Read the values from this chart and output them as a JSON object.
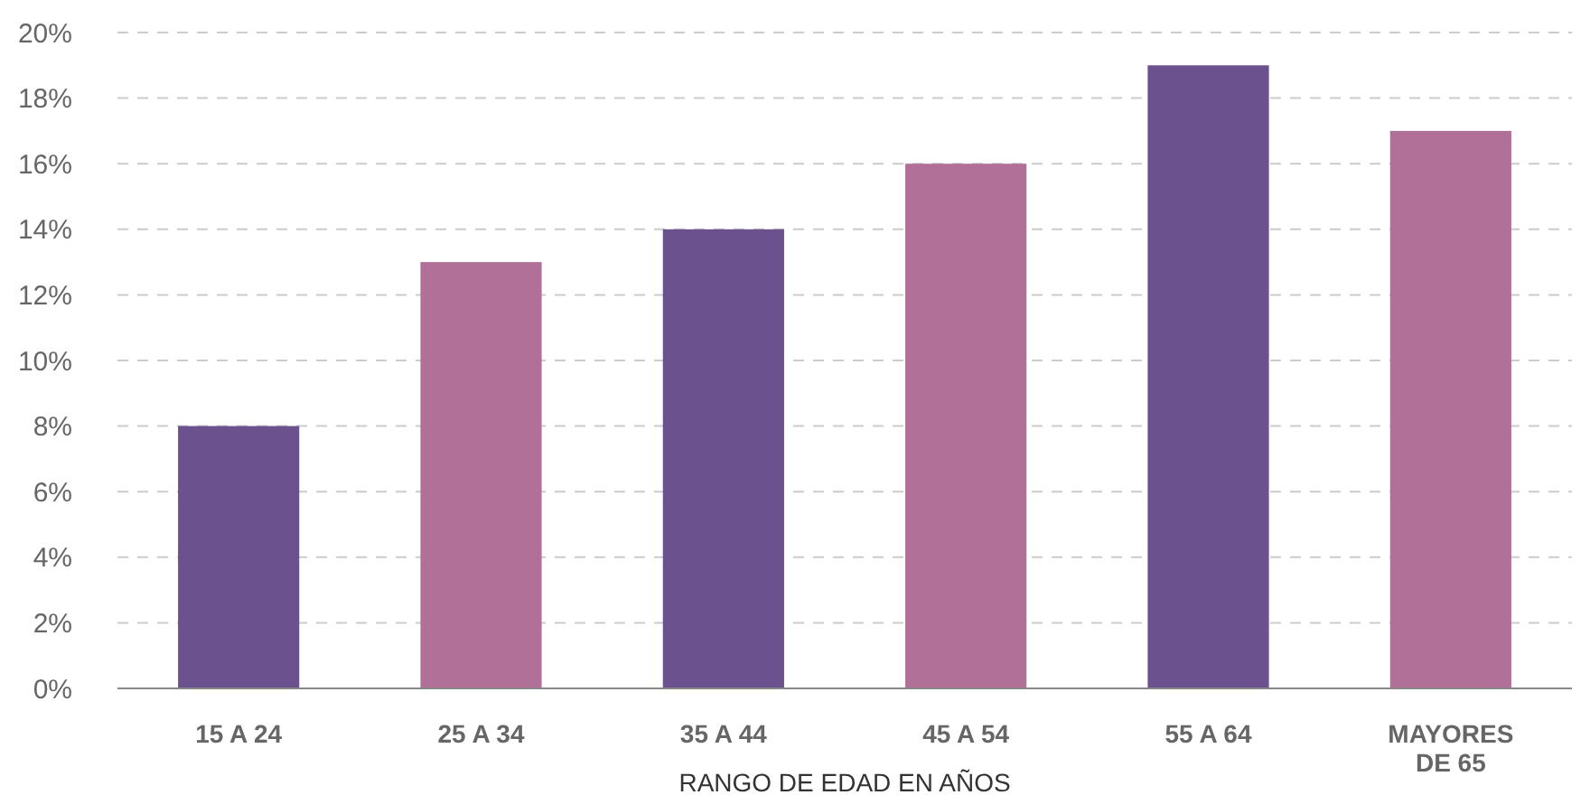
{
  "chart_data": {
    "type": "bar",
    "xlabel": "RANGO DE EDAD EN AÑOS",
    "categories": [
      "15 A 24",
      "25 A 34",
      "35 A 44",
      "45 A 54",
      "55 A 64",
      "MAYORES DE 65"
    ],
    "values": [
      8,
      13,
      14,
      16,
      19,
      17
    ],
    "colors": [
      "#6b518d",
      "#b07098",
      "#6b518d",
      "#b07098",
      "#6b518d",
      "#b07098"
    ],
    "ylim": [
      0,
      20
    ],
    "yticks": [
      {
        "value": 0,
        "label": "0%"
      },
      {
        "value": 2,
        "label": "2%"
      },
      {
        "value": 4,
        "label": "4%"
      },
      {
        "value": 6,
        "label": "6%"
      },
      {
        "value": 8,
        "label": "8%"
      },
      {
        "value": 10,
        "label": "10%"
      },
      {
        "value": 12,
        "label": "12%"
      },
      {
        "value": 14,
        "label": "14%"
      },
      {
        "value": 16,
        "label": "16%"
      },
      {
        "value": 18,
        "label": "18%"
      },
      {
        "value": 20,
        "label": "20%"
      }
    ],
    "grid": "y"
  }
}
